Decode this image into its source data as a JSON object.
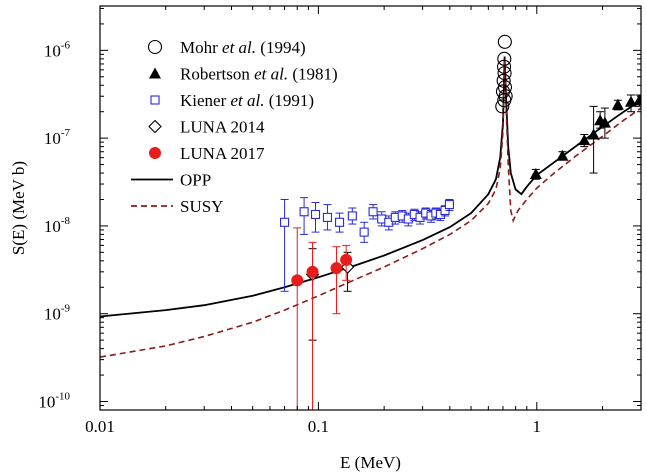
{
  "chart_data": {
    "type": "scatter",
    "xlabel": "E (MeV)",
    "ylabel": "S(E) (MeV b)",
    "xscale": "log",
    "yscale": "log",
    "xlim": [
      0.01,
      3
    ],
    "ylim": [
      8e-11,
      3.2e-06
    ],
    "grid": false,
    "legend_position": "top-left",
    "x_ticks": [
      {
        "value": 0.01,
        "label": "0.01"
      },
      {
        "value": 0.1,
        "label": "0.1"
      },
      {
        "value": 1,
        "label": "1"
      }
    ],
    "y_ticks": [
      {
        "value": 1e-10,
        "base": "10",
        "exp": "-10"
      },
      {
        "value": 1e-09,
        "base": "10",
        "exp": "-9"
      },
      {
        "value": 1e-08,
        "base": "10",
        "exp": "-8"
      },
      {
        "value": 1e-07,
        "base": "10",
        "exp": "-7"
      },
      {
        "value": 1e-06,
        "base": "10",
        "exp": "-6"
      }
    ],
    "series": [
      {
        "name_parts": [
          "Mohr ",
          "et al.",
          " (1994)"
        ],
        "marker": "open-circle",
        "color": "#000000",
        "points": [
          {
            "x": 0.695,
            "y": 2.3e-07
          },
          {
            "x": 0.71,
            "y": 2.7e-07
          },
          {
            "x": 0.72,
            "y": 3e-07
          },
          {
            "x": 0.7,
            "y": 3.4e-07
          },
          {
            "x": 0.715,
            "y": 3.8e-07
          },
          {
            "x": 0.705,
            "y": 4.5e-07
          },
          {
            "x": 0.712,
            "y": 5.5e-07
          },
          {
            "x": 0.708,
            "y": 6.5e-07
          },
          {
            "x": 0.71,
            "y": 8e-07
          },
          {
            "x": 0.714,
            "y": 1.25e-06
          }
        ]
      },
      {
        "name_parts": [
          "Robertson ",
          "et al.",
          " (1981)"
        ],
        "marker": "filled-triangle",
        "color": "#000000",
        "points": [
          {
            "x": 0.99,
            "y": 3.9e-08,
            "lo": 3.4e-08,
            "hi": 4.4e-08
          },
          {
            "x": 1.31,
            "y": 6.3e-08,
            "lo": 5.7e-08,
            "hi": 7e-08
          },
          {
            "x": 1.65,
            "y": 9.5e-08,
            "lo": 8e-08,
            "hi": 1.1e-07
          },
          {
            "x": 1.82,
            "y": 1.1e-07,
            "lo": 4e-08,
            "hi": 2.3e-07
          },
          {
            "x": 1.95,
            "y": 1.6e-07,
            "lo": 1.3e-07,
            "hi": 2e-07
          },
          {
            "x": 2.05,
            "y": 1.5e-07,
            "lo": 1e-07,
            "hi": 2.2e-07
          },
          {
            "x": 2.35,
            "y": 2.4e-07,
            "lo": 2.1e-07,
            "hi": 2.7e-07
          },
          {
            "x": 2.7,
            "y": 2.6e-07,
            "lo": 2e-07,
            "hi": 3.1e-07
          },
          {
            "x": 2.95,
            "y": 2.7e-07,
            "lo": 2.3e-07,
            "hi": 3.1e-07
          }
        ]
      },
      {
        "name_parts": [
          "Kiener ",
          "et al.",
          " (1991)"
        ],
        "marker": "open-square",
        "color": "#2b2bd6",
        "points": [
          {
            "x": 0.07,
            "y": 1.1e-08,
            "lo": 1.8e-09,
            "hi": 2e-08
          },
          {
            "x": 0.086,
            "y": 1.45e-08,
            "lo": 8e-09,
            "hi": 2.1e-08
          },
          {
            "x": 0.097,
            "y": 1.35e-08,
            "lo": 8.5e-09,
            "hi": 1.85e-08
          },
          {
            "x": 0.11,
            "y": 1.25e-08,
            "lo": 9e-09,
            "hi": 1.75e-08
          },
          {
            "x": 0.125,
            "y": 1.1e-08,
            "lo": 8.5e-09,
            "hi": 1.4e-08
          },
          {
            "x": 0.143,
            "y": 1.3e-08,
            "lo": 1.05e-08,
            "hi": 1.6e-08
          },
          {
            "x": 0.162,
            "y": 8.5e-09,
            "lo": 6.5e-09,
            "hi": 1.1e-08
          },
          {
            "x": 0.178,
            "y": 1.45e-08,
            "lo": 1.2e-08,
            "hi": 1.75e-08
          },
          {
            "x": 0.195,
            "y": 1.2e-08,
            "lo": 1e-08,
            "hi": 1.45e-08
          },
          {
            "x": 0.21,
            "y": 1.1e-08,
            "lo": 9e-09,
            "hi": 1.3e-08
          },
          {
            "x": 0.225,
            "y": 1.25e-08,
            "lo": 1.05e-08,
            "hi": 1.45e-08
          },
          {
            "x": 0.242,
            "y": 1.3e-08,
            "lo": 1.1e-08,
            "hi": 1.5e-08
          },
          {
            "x": 0.258,
            "y": 1.2e-08,
            "lo": 1e-08,
            "hi": 1.4e-08
          },
          {
            "x": 0.275,
            "y": 1.35e-08,
            "lo": 1.15e-08,
            "hi": 1.55e-08
          },
          {
            "x": 0.292,
            "y": 1.25e-08,
            "lo": 1.05e-08,
            "hi": 1.45e-08
          },
          {
            "x": 0.31,
            "y": 1.4e-08,
            "lo": 1.2e-08,
            "hi": 1.6e-08
          },
          {
            "x": 0.328,
            "y": 1.3e-08,
            "lo": 1.1e-08,
            "hi": 1.5e-08
          },
          {
            "x": 0.345,
            "y": 1.4e-08,
            "lo": 1.2e-08,
            "hi": 1.6e-08
          },
          {
            "x": 0.362,
            "y": 1.35e-08,
            "lo": 1.15e-08,
            "hi": 1.55e-08
          },
          {
            "x": 0.38,
            "y": 1.5e-08,
            "lo": 1.3e-08,
            "hi": 1.7e-08
          },
          {
            "x": 0.398,
            "y": 1.75e-08,
            "lo": 1.5e-08,
            "hi": 2e-08
          }
        ]
      },
      {
        "name_parts": [
          "LUNA 2014"
        ],
        "marker": "open-diamond",
        "color": "#000000",
        "points": [
          {
            "x": 0.094,
            "y": 2.8e-09,
            "lo": 5e-10,
            "hi": 5.5e-09
          },
          {
            "x": 0.136,
            "y": 3.4e-09,
            "lo": 1.8e-09,
            "hi": 5e-09
          }
        ]
      },
      {
        "name_parts": [
          "LUNA 2017"
        ],
        "marker": "filled-circle",
        "color": "#e81c1c",
        "points": [
          {
            "x": 0.08,
            "y": 2.4e-09,
            "lo": 5e-11,
            "hi": 9.5e-09
          },
          {
            "x": 0.094,
            "y": 3e-09,
            "lo": 5e-11,
            "hi": 6.5e-09
          },
          {
            "x": 0.121,
            "y": 3.3e-09,
            "lo": 1e-09,
            "hi": 5.8e-09
          },
          {
            "x": 0.134,
            "y": 4.1e-09,
            "lo": 2.4e-09,
            "hi": 6e-09
          }
        ]
      }
    ],
    "curves": [
      {
        "name": "OPP",
        "style": "solid",
        "color": "#000000",
        "points": [
          [
            0.01,
            9.3e-10
          ],
          [
            0.02,
            1.1e-09
          ],
          [
            0.03,
            1.25e-09
          ],
          [
            0.05,
            1.6e-09
          ],
          [
            0.07,
            2e-09
          ],
          [
            0.1,
            2.6e-09
          ],
          [
            0.15,
            3.6e-09
          ],
          [
            0.2,
            4.6e-09
          ],
          [
            0.3,
            6.9e-09
          ],
          [
            0.4,
            9.7e-09
          ],
          [
            0.5,
            1.4e-08
          ],
          [
            0.6,
            2.3e-08
          ],
          [
            0.65,
            3.4e-08
          ],
          [
            0.68,
            6e-08
          ],
          [
            0.7,
            1.5e-07
          ],
          [
            0.712,
            8.5e-07
          ],
          [
            0.725,
            2.5e-07
          ],
          [
            0.74,
            8e-08
          ],
          [
            0.76,
            4e-08
          ],
          [
            0.8,
            2.6e-08
          ],
          [
            0.85,
            2.3e-08
          ],
          [
            0.9,
            2.8e-08
          ],
          [
            1.0,
            3.8e-08
          ],
          [
            1.2,
            5.3e-08
          ],
          [
            1.5,
            8e-08
          ],
          [
            2.0,
            1.35e-07
          ],
          [
            2.5,
            2e-07
          ],
          [
            3.0,
            2.7e-07
          ]
        ]
      },
      {
        "name": "SUSY",
        "style": "dashed",
        "color": "#8b1a1a",
        "points": [
          [
            0.01,
            3.2e-10
          ],
          [
            0.02,
            4.3e-10
          ],
          [
            0.03,
            5.5e-10
          ],
          [
            0.05,
            8e-10
          ],
          [
            0.07,
            1.1e-09
          ],
          [
            0.1,
            1.6e-09
          ],
          [
            0.15,
            2.5e-09
          ],
          [
            0.2,
            3.4e-09
          ],
          [
            0.3,
            5.5e-09
          ],
          [
            0.4,
            8e-09
          ],
          [
            0.5,
            1.15e-08
          ],
          [
            0.6,
            1.8e-08
          ],
          [
            0.65,
            2.6e-08
          ],
          [
            0.68,
            4.5e-08
          ],
          [
            0.7,
            1.2e-07
          ],
          [
            0.712,
            8e-07
          ],
          [
            0.725,
            2e-07
          ],
          [
            0.74,
            5e-08
          ],
          [
            0.76,
            1.5e-08
          ],
          [
            0.78,
            1.15e-08
          ],
          [
            0.82,
            1.5e-08
          ],
          [
            0.9,
            2e-08
          ],
          [
            1.0,
            2.7e-08
          ],
          [
            1.2,
            4e-08
          ],
          [
            1.5,
            6.2e-08
          ],
          [
            2.0,
            1.05e-07
          ],
          [
            2.5,
            1.6e-07
          ],
          [
            3.0,
            2.2e-07
          ]
        ]
      }
    ]
  }
}
